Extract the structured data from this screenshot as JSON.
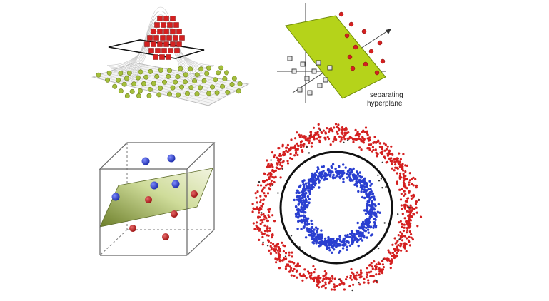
{
  "figure": {
    "colors": {
      "red": "#d42020",
      "green": "#a4bf3c",
      "blue": "#2a3fd0",
      "plane_green": "#b5d31a",
      "box": "#555555",
      "ring": "#111111"
    },
    "panels": [
      {
        "id": "kernel-lift",
        "description": "3D surface with red points lifted above flat grid of green points, cut by a horizontal plane"
      },
      {
        "id": "hyperplane-2d",
        "label_lines": [
          "separating",
          "hyperplane"
        ]
      },
      {
        "id": "cube-plane",
        "description": "Cube with tilted plane separating blue spheres from red spheres"
      },
      {
        "id": "concentric-rings",
        "description": "Blue inner ring of points, black circle boundary, red outer ring of points"
      }
    ]
  }
}
